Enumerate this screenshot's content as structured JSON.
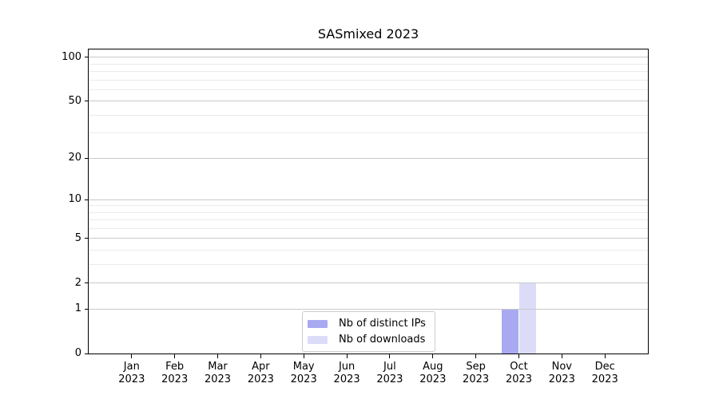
{
  "chart_data": {
    "type": "bar",
    "title": "SASmixed 2023",
    "categories": [
      "Jan",
      "Feb",
      "Mar",
      "Apr",
      "May",
      "Jun",
      "Jul",
      "Aug",
      "Sep",
      "Oct",
      "Nov",
      "Dec"
    ],
    "category_year": "2023",
    "series": [
      {
        "name": "Nb of distinct IPs",
        "color": "#a9a9f2",
        "values": [
          0,
          0,
          0,
          0,
          0,
          0,
          0,
          0,
          0,
          1,
          0,
          0
        ]
      },
      {
        "name": "Nb of downloads",
        "color": "#dcdcf8",
        "values": [
          0,
          0,
          0,
          0,
          0,
          0,
          0,
          0,
          0,
          2,
          0,
          0
        ]
      }
    ],
    "yscale": "log1p",
    "ylim": [
      0,
      113.3
    ],
    "xlim": [
      -1,
      12
    ],
    "yticks": [
      0,
      1,
      2,
      5,
      10,
      20,
      50,
      100
    ],
    "yticks_minor": [
      3,
      4,
      6,
      7,
      8,
      9,
      30,
      40,
      60,
      70,
      80,
      90
    ],
    "grid": true,
    "bar_width_fraction": 0.4,
    "legend": {
      "position": "lower-center",
      "border_color": "#cccccc"
    },
    "colors": {
      "background": "#ffffff",
      "spine": "#000000",
      "text": "#000000",
      "grid_major": "#c9c9c9",
      "grid_minor": "#ebebeb"
    }
  }
}
